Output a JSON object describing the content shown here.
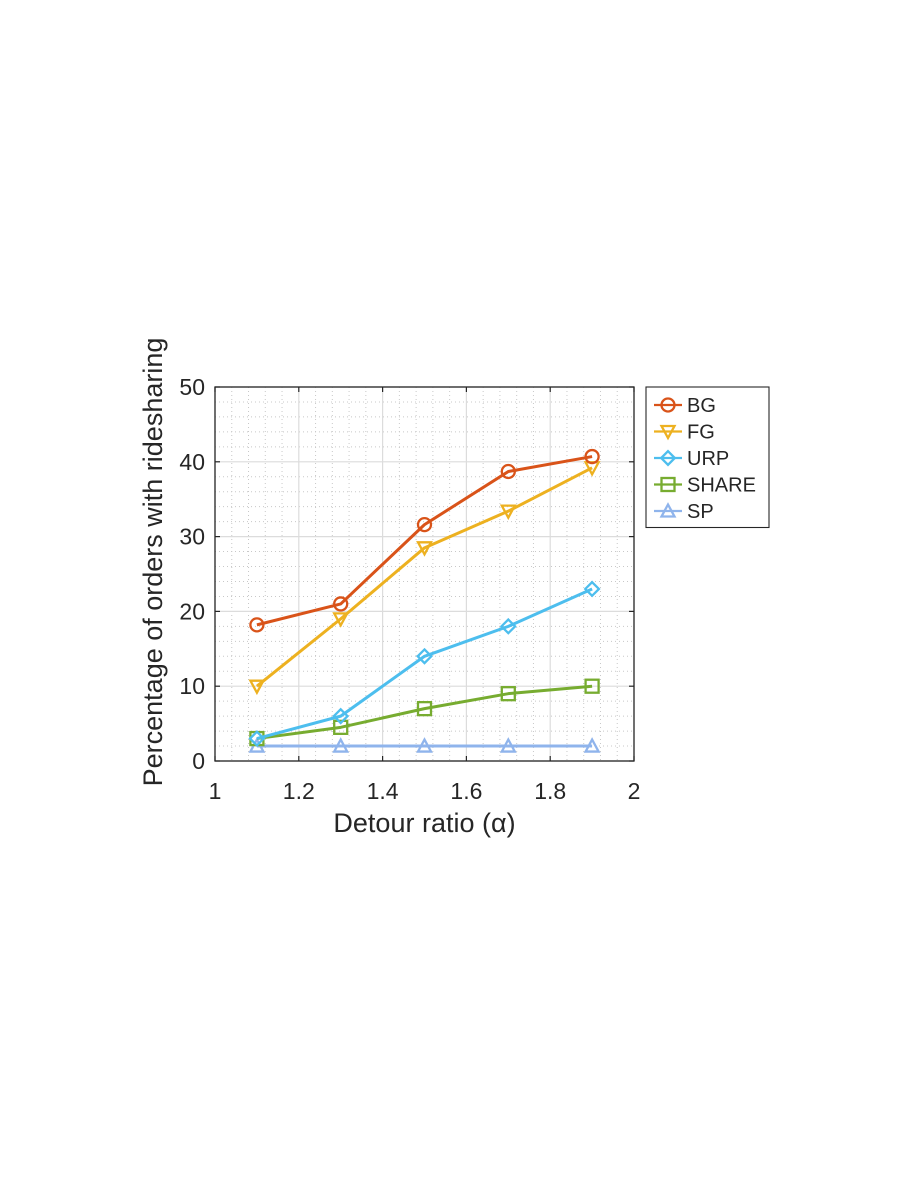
{
  "chart_data": {
    "type": "line",
    "title": "",
    "xlabel": "Detour ratio (α)",
    "ylabel": "Percentage of orders with ridesharing",
    "xlim": [
      1,
      2
    ],
    "ylim": [
      0,
      50
    ],
    "xticks": [
      1,
      1.2,
      1.4,
      1.6,
      1.8,
      2
    ],
    "xtick_labels": [
      "1",
      "1.2",
      "1.4",
      "1.6",
      "1.8",
      "2"
    ],
    "yticks": [
      0,
      10,
      20,
      30,
      40,
      50
    ],
    "ytick_labels": [
      "0",
      "10",
      "20",
      "30",
      "40",
      "50"
    ],
    "grid": true,
    "minor_grid": true,
    "legend_position": "outside-right-top",
    "x": [
      1.1,
      1.3,
      1.5,
      1.7,
      1.9
    ],
    "series": [
      {
        "name": "BG",
        "values": [
          18.2,
          21.0,
          31.6,
          38.7,
          40.7
        ],
        "color": "#D95319",
        "marker": "circle"
      },
      {
        "name": "FG",
        "values": [
          10.0,
          19.0,
          28.5,
          33.4,
          39.2
        ],
        "color": "#EDB120",
        "marker": "triangle-down"
      },
      {
        "name": "URP",
        "values": [
          3.0,
          6.0,
          14.0,
          18.0,
          23.0
        ],
        "color": "#4DBEEE",
        "marker": "diamond"
      },
      {
        "name": "SHARE",
        "values": [
          3.0,
          4.5,
          7.0,
          9.0,
          10.0
        ],
        "color": "#77AC30",
        "marker": "square"
      },
      {
        "name": "SP",
        "values": [
          2.0,
          2.0,
          2.0,
          2.0,
          2.0
        ],
        "color": "#8FB4EC",
        "marker": "triangle-up"
      }
    ]
  }
}
